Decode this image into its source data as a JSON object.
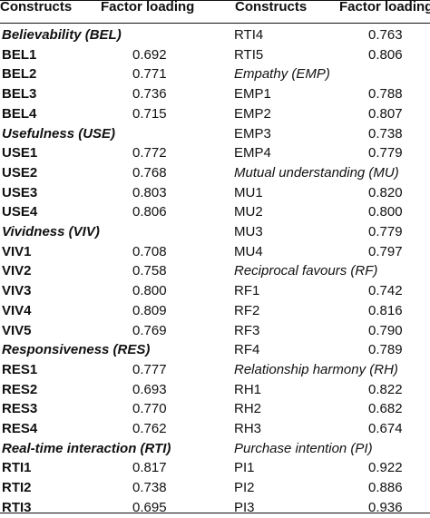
{
  "headers": {
    "constructs": "Constructs",
    "factor_loading": "Factor loading"
  },
  "left_rows": [
    {
      "type": "section",
      "label": "Believability (BEL)"
    },
    {
      "type": "item",
      "code": "BEL1",
      "value": "0.692"
    },
    {
      "type": "item",
      "code": "BEL2",
      "value": "0.771"
    },
    {
      "type": "item",
      "code": "BEL3",
      "value": "0.736"
    },
    {
      "type": "item",
      "code": "BEL4",
      "value": "0.715"
    },
    {
      "type": "section",
      "label": "Usefulness (USE)"
    },
    {
      "type": "item",
      "code": "USE1",
      "value": "0.772"
    },
    {
      "type": "item",
      "code": "USE2",
      "value": "0.768"
    },
    {
      "type": "item",
      "code": "USE3",
      "value": "0.803"
    },
    {
      "type": "item",
      "code": "USE4",
      "value": "0.806"
    },
    {
      "type": "section",
      "label": "Vividness (VIV)"
    },
    {
      "type": "item",
      "code": "VIV1",
      "value": "0.708"
    },
    {
      "type": "item",
      "code": "VIV2",
      "value": "0.758"
    },
    {
      "type": "item",
      "code": "VIV3",
      "value": "0.800"
    },
    {
      "type": "item",
      "code": "VIV4",
      "value": "0.809"
    },
    {
      "type": "item",
      "code": "VIV5",
      "value": "0.769"
    },
    {
      "type": "section",
      "label": "Responsiveness (RES)"
    },
    {
      "type": "item",
      "code": "RES1",
      "value": "0.777"
    },
    {
      "type": "item",
      "code": "RES2",
      "value": "0.693"
    },
    {
      "type": "item",
      "code": "RES3",
      "value": "0.770"
    },
    {
      "type": "item",
      "code": "RES4",
      "value": "0.762"
    },
    {
      "type": "section",
      "label": "Real-time interaction (RTI)"
    },
    {
      "type": "item",
      "code": "RTI1",
      "value": "0.817"
    },
    {
      "type": "item",
      "code": "RTI2",
      "value": "0.738"
    },
    {
      "type": "item",
      "code": "RTI3",
      "value": "0.695"
    }
  ],
  "right_rows": [
    {
      "type": "item",
      "code": "RTI4",
      "value": "0.763"
    },
    {
      "type": "item",
      "code": "RTI5",
      "value": "0.806"
    },
    {
      "type": "section",
      "label": "Empathy (EMP)"
    },
    {
      "type": "item",
      "code": "EMP1",
      "value": "0.788"
    },
    {
      "type": "item",
      "code": "EMP2",
      "value": "0.807"
    },
    {
      "type": "item",
      "code": "EMP3",
      "value": "0.738"
    },
    {
      "type": "item",
      "code": "EMP4",
      "value": "0.779"
    },
    {
      "type": "section",
      "label": "Mutual understanding (MU)"
    },
    {
      "type": "item",
      "code": "MU1",
      "value": "0.820"
    },
    {
      "type": "item",
      "code": "MU2",
      "value": "0.800"
    },
    {
      "type": "item",
      "code": "MU3",
      "value": "0.779"
    },
    {
      "type": "item",
      "code": "MU4",
      "value": "0.797"
    },
    {
      "type": "section",
      "label": "Reciprocal favours (RF)"
    },
    {
      "type": "item",
      "code": "RF1",
      "value": "0.742"
    },
    {
      "type": "item",
      "code": "RF2",
      "value": "0.816"
    },
    {
      "type": "item",
      "code": "RF3",
      "value": "0.790"
    },
    {
      "type": "item",
      "code": "RF4",
      "value": "0.789"
    },
    {
      "type": "section",
      "label": "Relationship harmony (RH)"
    },
    {
      "type": "item",
      "code": "RH1",
      "value": "0.822"
    },
    {
      "type": "item",
      "code": "RH2",
      "value": "0.682"
    },
    {
      "type": "item",
      "code": "RH3",
      "value": "0.674"
    },
    {
      "type": "section",
      "label": "Purchase intention (PI)"
    },
    {
      "type": "item",
      "code": "PI1",
      "value": "0.922"
    },
    {
      "type": "item",
      "code": "PI2",
      "value": "0.886"
    },
    {
      "type": "item",
      "code": "PI3",
      "value": "0.936"
    }
  ]
}
